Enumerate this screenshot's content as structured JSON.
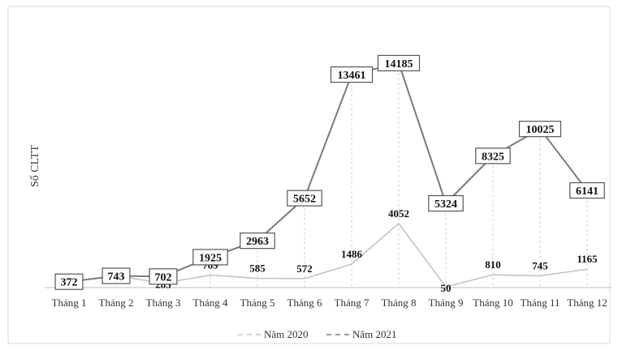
{
  "chart_data": {
    "type": "line",
    "title": "",
    "xlabel": "",
    "ylabel": "Số CLTT",
    "categories": [
      "Tháng 1",
      "Tháng 2",
      "Tháng 3",
      "Tháng 4",
      "Tháng 5",
      "Tháng 6",
      "Tháng 7",
      "Tháng 8",
      "Tháng 9",
      "Tháng 10",
      "Tháng 11",
      "Tháng 12"
    ],
    "series": [
      {
        "name": "Năm 2020",
        "values": [
          372,
          743,
          285,
          789,
          585,
          572,
          1486,
          4052,
          50,
          810,
          745,
          1165
        ],
        "color": "#c4c4c4",
        "labels_boxed": false
      },
      {
        "name": "Năm 2021",
        "values": [
          372,
          743,
          702,
          1925,
          2963,
          5652,
          13461,
          14185,
          5324,
          8325,
          10025,
          6141
        ],
        "color": "#7a7a7a",
        "labels_boxed": true
      }
    ],
    "ylim": [
      0,
      15000
    ],
    "grid": false,
    "drop_lines": true,
    "legend_position": "bottom-center"
  }
}
